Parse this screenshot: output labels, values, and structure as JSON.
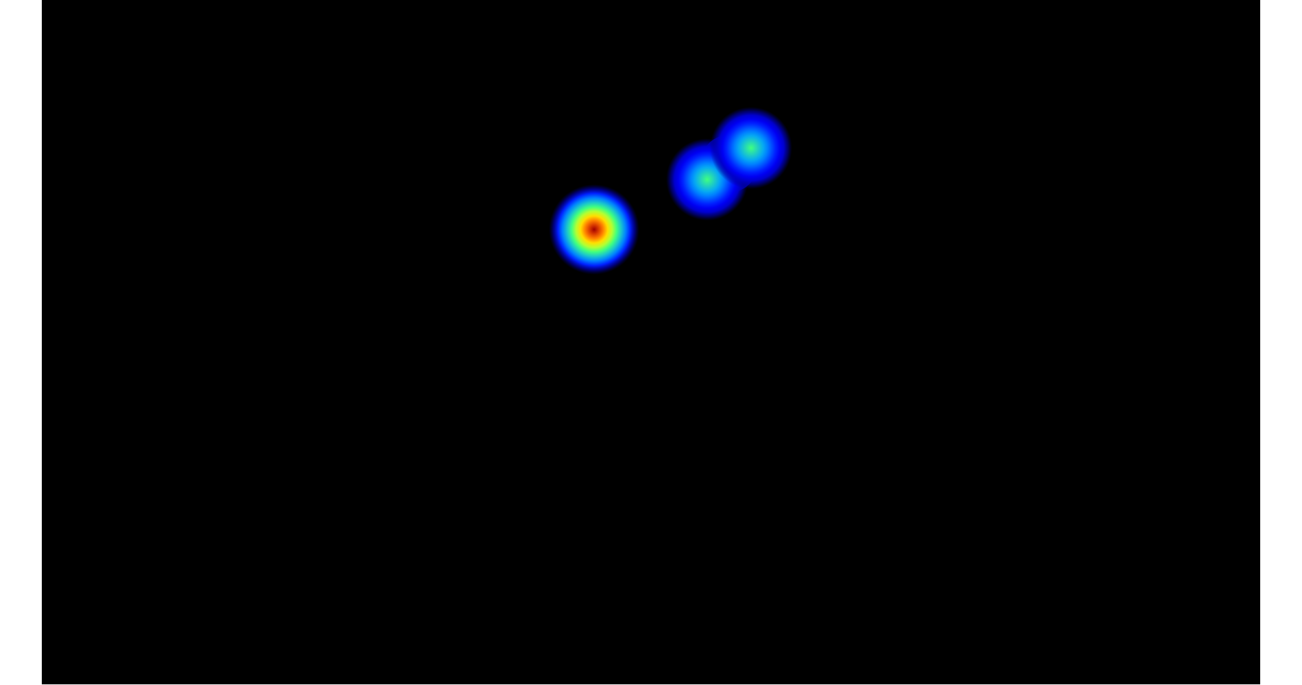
{
  "heatmap": {
    "background_color": "#000000",
    "page_background_color": "#ffffff",
    "colormap": "jet",
    "colormap_stops": [
      "#000080",
      "#0000ff",
      "#00a0ff",
      "#40ff80",
      "#ffff00",
      "#ff6000",
      "#a00000"
    ],
    "hotspots": [
      {
        "name": "hotspot-single",
        "intensity": 1.0
      },
      {
        "name": "hotspot-pair-left",
        "intensity": 0.5
      },
      {
        "name": "hotspot-pair-right",
        "intensity": 0.5
      }
    ]
  }
}
